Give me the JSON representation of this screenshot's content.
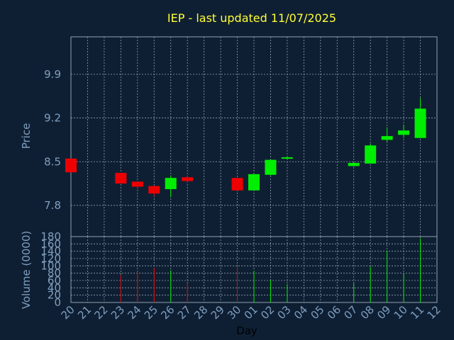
{
  "chart_data": [
    {
      "type": "candlestick",
      "title": "IEP - last updated 11/07/2025",
      "ylabel": "Price",
      "xlabel": "Day",
      "ylim": [
        7.3,
        10.5
      ],
      "yticks": [
        7.8,
        8.5,
        9.2,
        9.9
      ],
      "ytick_labels": [
        "7.8",
        "8.5",
        "9.2",
        "9.9"
      ],
      "grid": true,
      "x_tick_labels": [
        "20",
        "21",
        "22",
        "23",
        "24",
        "25",
        "26",
        "27",
        "28",
        "29",
        "30",
        "01",
        "02",
        "03",
        "04",
        "05",
        "06",
        "07",
        "08",
        "09",
        "10",
        "11",
        "12"
      ],
      "candles": [
        {
          "x": "20",
          "open": 8.55,
          "close": 8.33,
          "high": 8.55,
          "low": 8.33
        },
        {
          "x": "23",
          "open": 8.32,
          "close": 8.15,
          "high": 8.32,
          "low": 8.15
        },
        {
          "x": "24",
          "open": 8.18,
          "close": 8.1,
          "high": 8.18,
          "low": 8.06
        },
        {
          "x": "25",
          "open": 8.11,
          "close": 7.99,
          "high": 8.11,
          "low": 7.95
        },
        {
          "x": "26",
          "open": 8.06,
          "close": 8.24,
          "high": 8.28,
          "low": 7.93
        },
        {
          "x": "27",
          "open": 8.25,
          "close": 8.19,
          "high": 8.27,
          "low": 8.16
        },
        {
          "x": "30",
          "open": 8.24,
          "close": 8.04,
          "high": 8.24,
          "low": 8.04
        },
        {
          "x": "01",
          "open": 8.04,
          "close": 8.3,
          "high": 8.3,
          "low": 8.04
        },
        {
          "x": "02",
          "open": 8.29,
          "close": 8.53,
          "high": 8.53,
          "low": 8.28
        },
        {
          "x": "03",
          "open": 8.55,
          "close": 8.57,
          "high": 8.59,
          "low": 8.54
        },
        {
          "x": "07",
          "open": 8.43,
          "close": 8.48,
          "high": 8.49,
          "low": 8.42
        },
        {
          "x": "08",
          "open": 8.47,
          "close": 8.76,
          "high": 8.79,
          "low": 8.47
        },
        {
          "x": "09",
          "open": 8.85,
          "close": 8.91,
          "high": 9.05,
          "low": 8.82
        },
        {
          "x": "10",
          "open": 8.93,
          "close": 9.0,
          "high": 9.09,
          "low": 8.88
        },
        {
          "x": "11",
          "open": 8.88,
          "close": 9.35,
          "high": 9.52,
          "low": 8.88
        }
      ],
      "up_color": "#00ee00",
      "down_color": "#ee0000"
    },
    {
      "type": "bar",
      "ylabel": "Volume (0000)",
      "ylim": [
        0,
        180
      ],
      "yticks": [
        0,
        20,
        40,
        60,
        80,
        100,
        120,
        140,
        160,
        180
      ],
      "ytick_labels": [
        "0",
        "20",
        "40",
        "60",
        "80",
        "100",
        "120",
        "140",
        "160",
        "180"
      ],
      "grid": true,
      "bars": [
        {
          "x": "23",
          "value": 75,
          "direction": "down"
        },
        {
          "x": "24",
          "value": 85,
          "direction": "down"
        },
        {
          "x": "25",
          "value": 95,
          "direction": "down"
        },
        {
          "x": "26",
          "value": 88,
          "direction": "up"
        },
        {
          "x": "27",
          "value": 52,
          "direction": "down"
        },
        {
          "x": "30",
          "value": 100,
          "direction": "down"
        },
        {
          "x": "01",
          "value": 86,
          "direction": "up"
        },
        {
          "x": "02",
          "value": 62,
          "direction": "up"
        },
        {
          "x": "03",
          "value": 50,
          "direction": "up"
        },
        {
          "x": "07",
          "value": 52,
          "direction": "up"
        },
        {
          "x": "08",
          "value": 98,
          "direction": "up"
        },
        {
          "x": "09",
          "value": 142,
          "direction": "up"
        },
        {
          "x": "10",
          "value": 78,
          "direction": "up"
        },
        {
          "x": "11",
          "value": 175,
          "direction": "up"
        }
      ]
    }
  ],
  "colors": {
    "background": "#0f1f33",
    "title": "#ffff33",
    "axis_text": "#7f9fbf",
    "grid": "#8ea0b0",
    "up": "#00ee00",
    "down": "#ee0000"
  }
}
